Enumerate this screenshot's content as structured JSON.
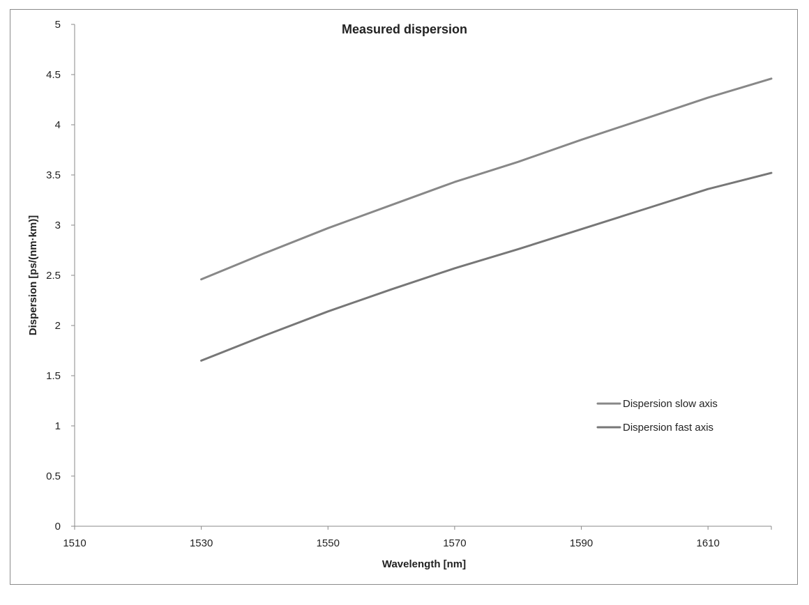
{
  "chart_data": {
    "type": "line",
    "title": "Measured dispersion",
    "xlabel": "Wavelength [nm]",
    "ylabel": "Dispersion [ps/(nm·km)]",
    "xlim": [
      1510,
      1620
    ],
    "ylim": [
      0,
      5
    ],
    "x_ticks": [
      1510,
      1530,
      1550,
      1570,
      1590,
      1610
    ],
    "y_ticks": [
      0,
      0.5,
      1,
      1.5,
      2,
      2.5,
      3,
      3.5,
      4,
      4.5,
      5
    ],
    "y_tick_labels": [
      "0",
      "0.5",
      "1",
      "1.5",
      "2",
      "2.5",
      "3",
      "3.5",
      "4",
      "4.5",
      "5"
    ],
    "grid": false,
    "legend_position": "right",
    "series": [
      {
        "name": "Dispersion slow axis",
        "color": "#888888",
        "x": [
          1530,
          1540,
          1550,
          1560,
          1570,
          1580,
          1590,
          1600,
          1610,
          1620
        ],
        "y": [
          2.46,
          2.72,
          2.97,
          3.2,
          3.43,
          3.63,
          3.85,
          4.06,
          4.27,
          4.46
        ]
      },
      {
        "name": "Dispersion fast axis",
        "color": "#777777",
        "x": [
          1530,
          1540,
          1550,
          1560,
          1570,
          1580,
          1590,
          1600,
          1610,
          1620
        ],
        "y": [
          1.65,
          1.9,
          2.14,
          2.36,
          2.57,
          2.76,
          2.96,
          3.16,
          3.36,
          3.52
        ]
      }
    ]
  }
}
